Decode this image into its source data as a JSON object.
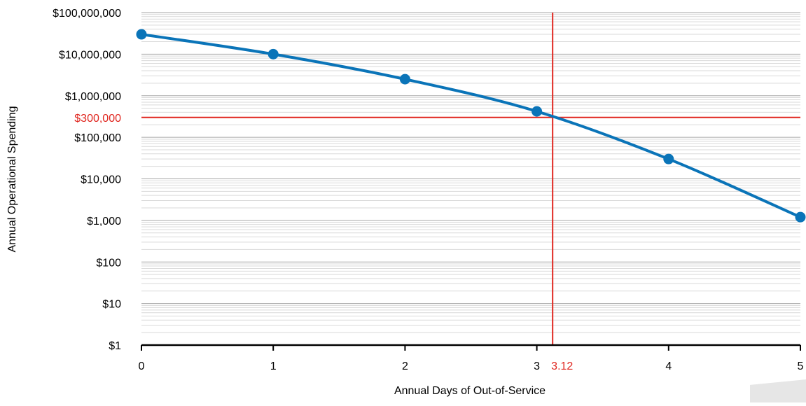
{
  "chart_data": {
    "type": "line",
    "title": "",
    "xlabel": "Annual Days of Out-of-Service",
    "ylabel": "Annual Operational Spending",
    "x_scale": "linear",
    "y_scale": "log",
    "xlim": [
      0,
      5
    ],
    "ylim": [
      1,
      100000000
    ],
    "x_ticks": [
      0,
      1,
      2,
      3,
      4,
      5
    ],
    "x_tick_labels": [
      "0",
      "1",
      "2",
      "3",
      "4",
      "5"
    ],
    "y_ticks": [
      1,
      10,
      100,
      1000,
      10000,
      100000,
      1000000,
      10000000,
      100000000
    ],
    "y_tick_labels": [
      "$1",
      "$10",
      "$100",
      "$1,000",
      "$10,000",
      "$100,000",
      "$1,000,000",
      "$10,000,000",
      "$100,000,000"
    ],
    "grid": true,
    "series": [
      {
        "color": "#0a74b8",
        "x": [
          0,
          1,
          2,
          3,
          4,
          5
        ],
        "y": [
          30000000,
          10000000,
          2500000,
          420000,
          30000,
          1200
        ]
      }
    ],
    "reference_lines": {
      "color": "#e0261f",
      "horizontal": {
        "value": 300000,
        "label": "$300,000"
      },
      "vertical": {
        "value": 3.12,
        "label": "3.12"
      }
    }
  }
}
